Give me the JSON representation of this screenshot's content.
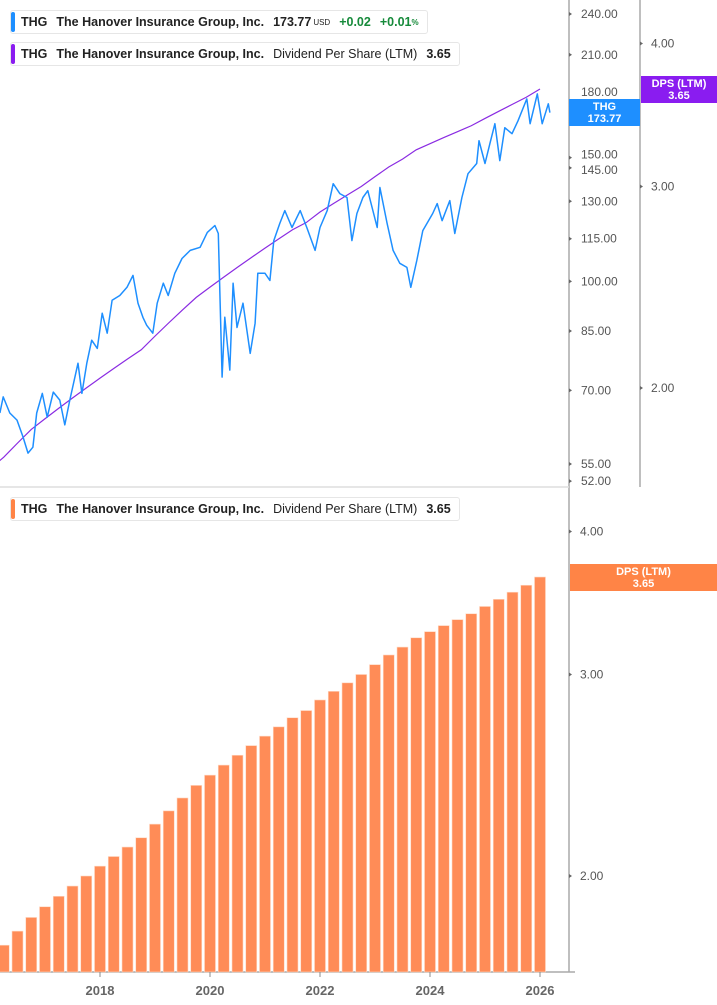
{
  "colors": {
    "price": "#1e8fff",
    "dps_line": "#8a2be2",
    "dps_bars": "#ff8c57",
    "dps_tag_bottom": "#ff8446",
    "dps_tag_top": "#8a1cf0",
    "price_tag": "#1e8fff"
  },
  "legends": {
    "price": {
      "ticker": "THG",
      "name": "The Hanover Insurance Group, Inc.",
      "price": "173.77",
      "currency": "USD",
      "change": "+0.02",
      "change_pct": "+0.01",
      "pct_sign": "%"
    },
    "dps_top": {
      "ticker": "THG",
      "name": "The Hanover Insurance Group, Inc.",
      "metric": "Dividend Per Share (LTM)",
      "value": "3.65"
    },
    "dps_bottom": {
      "ticker": "THG",
      "name": "The Hanover Insurance Group, Inc.",
      "metric": "Dividend Per Share (LTM)",
      "value": "3.65"
    }
  },
  "tags": {
    "price": {
      "label": "THG",
      "value": "173.77"
    },
    "dps_top": {
      "label": "DPS (LTM)",
      "value": "3.65"
    },
    "dps_bottom": {
      "label": "DPS (LTM)",
      "value": "3.65"
    }
  },
  "chart_data": [
    {
      "type": "line",
      "panel": "top",
      "scale": "log",
      "xlabel": "",
      "ylabel": "",
      "y_ticks": [
        "240.00",
        "210.00",
        "180.00",
        "150.00",
        "145.00",
        "130.00",
        "115.00",
        "100.00",
        "85.00",
        "70.00",
        "55.00",
        "52.00"
      ],
      "ylim": [
        52,
        240
      ],
      "y2_ticks": [
        "4.00",
        "3.00",
        "2.00"
      ],
      "series": [
        {
          "key": "price",
          "x": [
            2016.18,
            2016.24,
            2016.36,
            2016.49,
            2016.6,
            2016.69,
            2016.78,
            2016.85,
            2016.95,
            2017.04,
            2017.15,
            2017.27,
            2017.36,
            2017.45,
            2017.6,
            2017.67,
            2017.76,
            2017.85,
            2017.95,
            2018.04,
            2018.13,
            2018.22,
            2018.36,
            2018.49,
            2018.6,
            2018.69,
            2018.78,
            2018.85,
            2018.96,
            2019.04,
            2019.15,
            2019.24,
            2019.36,
            2019.49,
            2019.64,
            2019.82,
            2019.95,
            2020.09,
            2020.15,
            2020.22,
            2020.27,
            2020.36,
            2020.42,
            2020.49,
            2020.6,
            2020.73,
            2020.82,
            2020.87,
            2021.0,
            2021.09,
            2021.16,
            2021.27,
            2021.36,
            2021.49,
            2021.64,
            2021.76,
            2021.91,
            2022.0,
            2022.13,
            2022.24,
            2022.36,
            2022.49,
            2022.58,
            2022.67,
            2022.78,
            2022.87,
            2023.04,
            2023.09,
            2023.22,
            2023.33,
            2023.45,
            2023.58,
            2023.65,
            2023.76,
            2023.87,
            2024.05,
            2024.13,
            2024.22,
            2024.36,
            2024.45,
            2024.58,
            2024.69,
            2024.85,
            2024.89,
            2025.0,
            2025.09,
            2025.18,
            2025.27,
            2025.36,
            2025.49,
            2025.6,
            2025.76,
            2025.82,
            2025.95,
            2026.04,
            2026.15,
            2026.18
          ],
          "values": [
            65.0,
            68.5,
            65.0,
            63.5,
            60.1,
            57.0,
            58.1,
            65.0,
            69.3,
            64.1,
            69.6,
            67.8,
            62.5,
            67.8,
            76.5,
            69.3,
            76.5,
            82.5,
            80.3,
            90.1,
            84.4,
            94.0,
            95.5,
            98.1,
            102.0,
            93.1,
            88.9,
            86.6,
            84.4,
            93.1,
            99.4,
            95.5,
            102.7,
            107.8,
            110.7,
            111.8,
            117.4,
            120.1,
            117.0,
            73.1,
            88.9,
            74.8,
            99.4,
            86.0,
            93.1,
            79.0,
            87.2,
            102.7,
            102.7,
            100.3,
            114.3,
            120.9,
            126.1,
            119.3,
            126.1,
            119.3,
            110.7,
            119.3,
            126.1,
            137.7,
            133.3,
            131.6,
            114.3,
            124.9,
            131.6,
            134.6,
            119.3,
            136.0,
            120.9,
            110.7,
            106.1,
            104.7,
            98.1,
            107.1,
            118.1,
            124.9,
            129.0,
            122.0,
            130.3,
            117.0,
            131.6,
            142.3,
            147.1,
            158.5,
            147.1,
            157.0,
            167.6,
            148.5,
            165.4,
            162.2,
            169.2,
            181.8,
            167.6,
            184.8,
            167.6,
            178.9,
            173.77
          ]
        }
      ]
    },
    {
      "type": "bar",
      "panel": "bottom",
      "scale": "log",
      "xlabel": "",
      "ylabel": "",
      "x_ticks": [
        "2018",
        "2020",
        "2022",
        "2024",
        "2026"
      ],
      "y_ticks": [
        "4.00",
        "3.00",
        "2.00"
      ],
      "x": [
        2016.25,
        2016.5,
        2016.75,
        2017.0,
        2017.25,
        2017.5,
        2017.75,
        2018.0,
        2018.25,
        2018.5,
        2018.75,
        2019.0,
        2019.25,
        2019.5,
        2019.75,
        2020.0,
        2020.25,
        2020.5,
        2020.75,
        2021.0,
        2021.25,
        2021.5,
        2021.75,
        2022.0,
        2022.25,
        2022.5,
        2022.75,
        2023.0,
        2023.25,
        2023.5,
        2023.75,
        2024.0,
        2024.25,
        2024.5,
        2024.75,
        2025.0,
        2025.25,
        2025.5,
        2025.75,
        2026.0
      ],
      "values": [
        1.74,
        1.79,
        1.84,
        1.88,
        1.92,
        1.96,
        2.0,
        2.04,
        2.08,
        2.12,
        2.16,
        2.22,
        2.28,
        2.34,
        2.4,
        2.45,
        2.5,
        2.55,
        2.6,
        2.65,
        2.7,
        2.75,
        2.79,
        2.85,
        2.9,
        2.95,
        3.0,
        3.06,
        3.12,
        3.17,
        3.23,
        3.27,
        3.31,
        3.35,
        3.39,
        3.44,
        3.49,
        3.54,
        3.59,
        3.65
      ]
    }
  ]
}
